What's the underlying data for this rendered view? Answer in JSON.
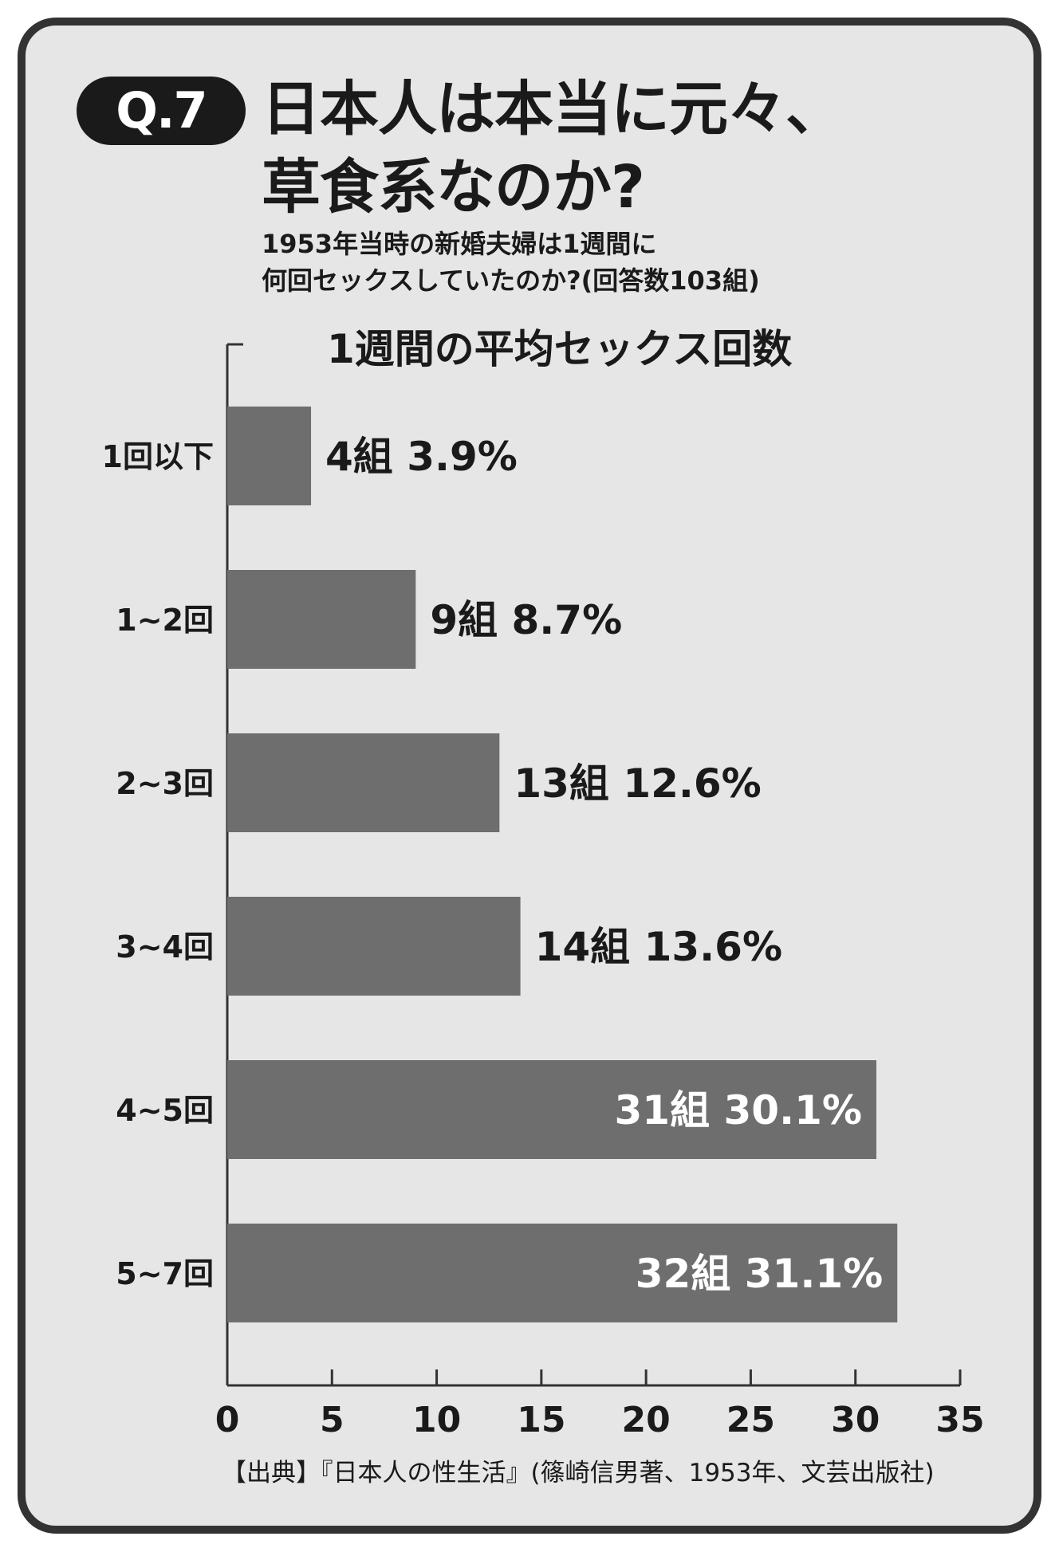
{
  "header": {
    "badge": "Q.7",
    "title_line1": "日本人は本当に元々、",
    "title_line2": "草食系なのか?",
    "subtitle_line1": "1953年当時の新婚夫婦は1週間に",
    "subtitle_line2": "何回セックスしていたのか?(回答数103組)"
  },
  "source": "【出典】『日本人の性生活』(篠崎信男著、1953年、文芸出版社)",
  "colors": {
    "bar": "#6e6e6e",
    "background": "#e6e6e6",
    "text_dark": "#1a1a1a",
    "text_on_bar": "#ffffff"
  },
  "chart_data": {
    "type": "bar",
    "orientation": "horizontal",
    "title": "1週間の平均セックス回数",
    "categories": [
      "1回以下",
      "1~2回",
      "2~3回",
      "3~4回",
      "4~5回",
      "5~7回"
    ],
    "values": [
      4,
      9,
      13,
      14,
      31,
      32
    ],
    "data_labels": [
      "4組 3.9%",
      "9組 8.7%",
      "13組 12.6%",
      "14組 13.6%",
      "31組 30.1%",
      "32組 31.1%"
    ],
    "xlim": [
      0,
      35
    ],
    "xticks": [
      0,
      5,
      10,
      15,
      20,
      25,
      30,
      35
    ],
    "grid": false
  }
}
